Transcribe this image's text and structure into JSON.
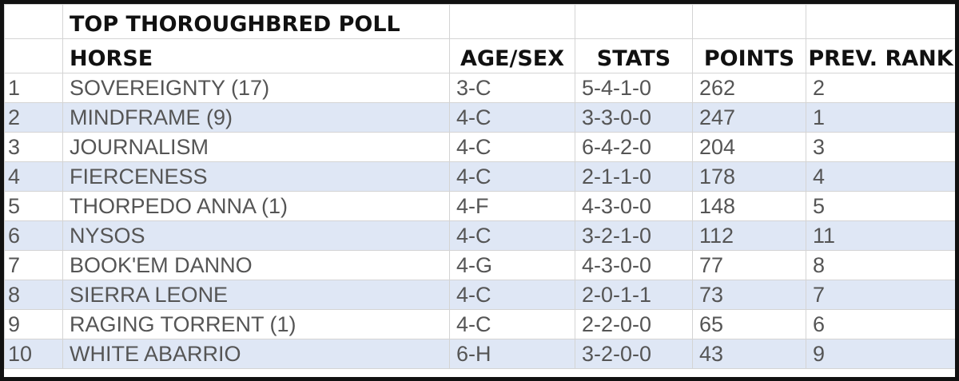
{
  "title": "TOP THOROUGHBRED POLL",
  "headers": {
    "horse": "HORSE",
    "age_sex": "AGE/SEX",
    "stats": "STATS",
    "points": "POINTS",
    "prev_rank": "PREV. RANK"
  },
  "colors": {
    "alt_row": "#dfe7f5",
    "border": "#111111"
  },
  "rows": [
    {
      "rank": "1",
      "horse": "SOVEREIGNTY (17)",
      "age_sex": "3-C",
      "stats": "5-4-1-0",
      "points": "262",
      "prev_rank": "2"
    },
    {
      "rank": "2",
      "horse": "MINDFRAME (9)",
      "age_sex": "4-C",
      "stats": "3-3-0-0",
      "points": "247",
      "prev_rank": "1"
    },
    {
      "rank": "3",
      "horse": "JOURNALISM",
      "age_sex": "4-C",
      "stats": "6-4-2-0",
      "points": "204",
      "prev_rank": "3"
    },
    {
      "rank": "4",
      "horse": "FIERCENESS",
      "age_sex": "4-C",
      "stats": "2-1-1-0",
      "points": "178",
      "prev_rank": "4"
    },
    {
      "rank": "5",
      "horse": "THORPEDO ANNA (1)",
      "age_sex": "4-F",
      "stats": "4-3-0-0",
      "points": "148",
      "prev_rank": "5"
    },
    {
      "rank": "6",
      "horse": "NYSOS",
      "age_sex": "4-C",
      "stats": "3-2-1-0",
      "points": "112",
      "prev_rank": "11"
    },
    {
      "rank": "7",
      "horse": "BOOK'EM DANNO",
      "age_sex": "4-G",
      "stats": "4-3-0-0",
      "points": "77",
      "prev_rank": "8"
    },
    {
      "rank": "8",
      "horse": "SIERRA LEONE",
      "age_sex": "4-C",
      "stats": "2-0-1-1",
      "points": "73",
      "prev_rank": "7"
    },
    {
      "rank": "9",
      "horse": "RAGING TORRENT (1)",
      "age_sex": "4-C",
      "stats": "2-2-0-0",
      "points": "65",
      "prev_rank": "6"
    },
    {
      "rank": "10",
      "horse": "WHITE ABARRIO",
      "age_sex": "6-H",
      "stats": "3-2-0-0",
      "points": "43",
      "prev_rank": "9"
    }
  ]
}
